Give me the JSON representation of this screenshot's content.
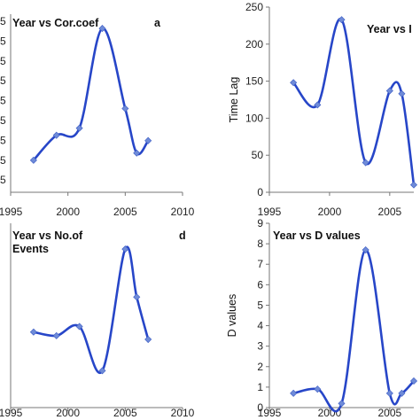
{
  "chart_data": [
    {
      "id": "a",
      "type": "line",
      "title": "Year vs  Cor.coef",
      "panel_letter": "a",
      "ylabel": "",
      "x": [
        1997,
        1999,
        2001,
        2003,
        2005,
        2006,
        2007
      ],
      "values": [
        0.18,
        0.32,
        0.36,
        0.92,
        0.47,
        0.22,
        0.29
      ],
      "ylim": [
        0,
        1
      ],
      "xlim": [
        1995,
        2010
      ],
      "xticks": [
        "1995",
        "2000",
        "2005",
        "2010"
      ],
      "yticks": [],
      "grid": false
    },
    {
      "id": "b",
      "type": "line",
      "title": "Year vs  I",
      "panel_letter": "",
      "ylabel": "Time Lag",
      "x": [
        1997,
        1999,
        2001,
        2003,
        2005,
        2006,
        2007
      ],
      "values": [
        148,
        118,
        233,
        40,
        137,
        133,
        10
      ],
      "ylim": [
        0,
        250
      ],
      "xlim": [
        1995,
        2007
      ],
      "xticks": [
        "1995",
        "2000",
        "2005"
      ],
      "yticks": [
        "0",
        "50",
        "100",
        "150",
        "200",
        "250"
      ],
      "grid": false
    },
    {
      "id": "d",
      "type": "line",
      "title": "Year vs  No.of Events",
      "title_lines": [
        "Year vs  No.of",
        "Events"
      ],
      "panel_letter": "d",
      "ylabel": "",
      "x": [
        1997,
        1999,
        2001,
        2003,
        2005,
        2006,
        2007
      ],
      "values": [
        0.41,
        0.39,
        0.44,
        0.2,
        0.86,
        0.6,
        0.37
      ],
      "ylim": [
        0,
        1
      ],
      "xlim": [
        1995,
        2010
      ],
      "xticks": [
        "1995",
        "2000",
        "2005",
        "2010"
      ],
      "yticks": [],
      "grid": false
    },
    {
      "id": "c",
      "type": "line",
      "title": "Year vs  D values",
      "panel_letter": "",
      "ylabel": "D values",
      "x": [
        1997,
        1999,
        2001,
        2003,
        2005,
        2006,
        2007
      ],
      "values": [
        0.7,
        0.9,
        0.2,
        7.7,
        0.7,
        0.7,
        1.3
      ],
      "ylim": [
        0,
        9
      ],
      "xlim": [
        1995,
        2007
      ],
      "xticks": [
        "1995",
        "2000",
        "2005"
      ],
      "yticks": [
        "0",
        "1",
        "2",
        "3",
        "4",
        "5",
        "6",
        "7",
        "8",
        "9"
      ],
      "grid": false
    }
  ],
  "left_edge_labels": {
    "a": [
      "5",
      "5",
      "5",
      "5",
      "5",
      "5",
      "5",
      "5",
      "5"
    ],
    "d": []
  },
  "colors": {
    "line": "#2746c8",
    "marker": "#6f8bd8"
  }
}
